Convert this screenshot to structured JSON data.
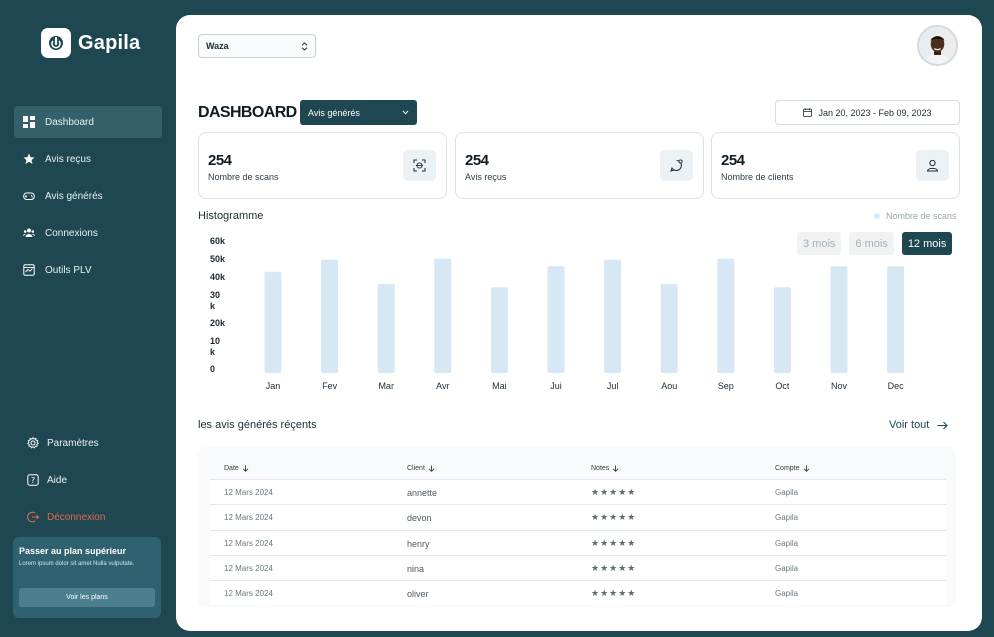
{
  "brand": {
    "name": "Gapila"
  },
  "sidebar": {
    "items": [
      {
        "label": "Dashboard",
        "icon": "dashboard-icon",
        "active": true
      },
      {
        "label": "Avis reçus",
        "icon": "star-icon",
        "active": false
      },
      {
        "label": "Avis générés",
        "icon": "gamepad-icon",
        "active": false
      },
      {
        "label": "Connexions",
        "icon": "users-icon",
        "active": false
      },
      {
        "label": "Outils PLV",
        "icon": "plv-icon",
        "active": false
      }
    ],
    "bottom": [
      {
        "label": "Paramètres",
        "icon": "gear-icon"
      },
      {
        "label": "Aide",
        "icon": "help-icon"
      },
      {
        "label": "Déconnexion",
        "icon": "logout-icon"
      }
    ],
    "upgrade": {
      "title": "Passer au plan supérieur",
      "text": "Lorem ipsum dolor sit amet Nulla vulputate.",
      "button": "Voir les plans"
    }
  },
  "header": {
    "workspace": "Waza",
    "title": "DASHBOARD",
    "view_select": "Avis générés",
    "date_range": "Jan 20, 2023 - Feb 09, 2023"
  },
  "stats": [
    {
      "value": "254",
      "label": "Nombre de scans",
      "icon": "scan-icon"
    },
    {
      "value": "254",
      "label": "Avis reçus",
      "icon": "chat-icon"
    },
    {
      "value": "254",
      "label": "Nombre de clients",
      "icon": "user-icon"
    }
  ],
  "histogram": {
    "title": "Histogramme",
    "periods": [
      {
        "label": "3 mois",
        "active": false
      },
      {
        "label": "6 mois",
        "active": false
      },
      {
        "label": "12 mois",
        "active": true
      }
    ]
  },
  "chart_data": {
    "type": "bar",
    "title": "Histogramme",
    "categories": [
      "Jan",
      "Fev",
      "Mar",
      "Avr",
      "Mai",
      "Jui",
      "Jul",
      "Aou",
      "Sep",
      "Oct",
      "Nov",
      "Dec"
    ],
    "series": [
      {
        "name": "Nombre de scans",
        "values": [
          46000,
          51500,
          40500,
          52000,
          39000,
          48500,
          51500,
          40500,
          52000,
          39000,
          48500,
          48500
        ]
      }
    ],
    "yticks": [
      "60k",
      "50k",
      "40k",
      "30 k",
      "20k",
      "10 k",
      "0"
    ],
    "ylim": [
      0,
      60000
    ],
    "legend": "top-right",
    "grid": false,
    "color": "#d6e8f4"
  },
  "recent": {
    "title": "les avis générés réçents",
    "see_all": "Voir tout",
    "columns": [
      "Date",
      "Client",
      "Notes",
      "Compte"
    ],
    "rows": [
      {
        "date": "12 Mars 2024",
        "client": "annette",
        "notes": "★★★★★",
        "compte": "Gapila"
      },
      {
        "date": "12 Mars 2024",
        "client": "devon",
        "notes": "★★★★★",
        "compte": "Gapila"
      },
      {
        "date": "12 Mars 2024",
        "client": "henry",
        "notes": "★★★★★",
        "compte": "Gapila"
      },
      {
        "date": "12 Mars 2024",
        "client": "nina",
        "notes": "★★★★★",
        "compte": "Gapila"
      },
      {
        "date": "12 Mars 2024",
        "client": "oliver",
        "notes": "★★★★★",
        "compte": "Gapila"
      }
    ]
  },
  "colors": {
    "primary": "#1f4752",
    "bar": "#d6e8f4",
    "danger": "#e0674f"
  }
}
